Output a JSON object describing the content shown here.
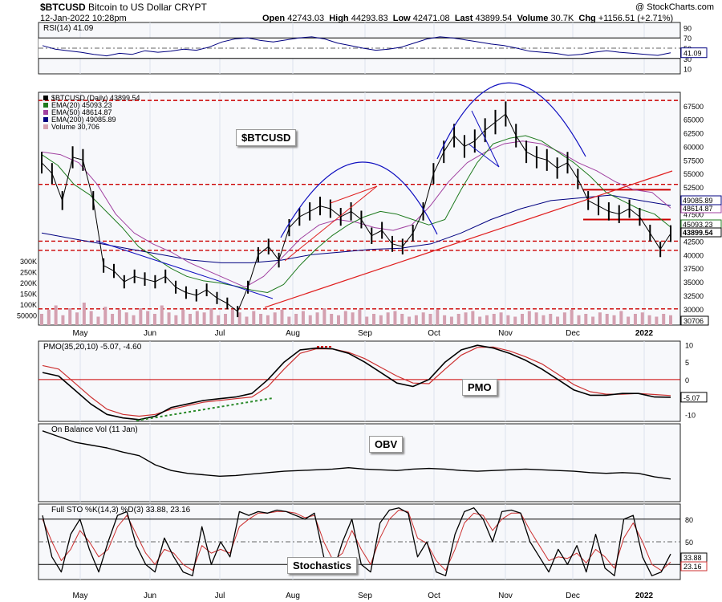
{
  "header": {
    "symbol": "$BTCUSD",
    "description": "Bitcoin to US Dollar",
    "exchange": "CRYPT",
    "date": "12-Jan-2022 10:28pm",
    "open_label": "Open",
    "open": "42743.03",
    "high_label": "High",
    "high": "44293.83",
    "low_label": "Low",
    "low": "42471.08",
    "last_label": "Last",
    "last": "43899.54",
    "volume_label": "Volume",
    "volume": "30.7K",
    "chg_label": "Chg",
    "chg": "+1156.51 (+2.71%)",
    "watermark": "@ StockCharts.com"
  },
  "annotations": {
    "symbol_box": "$BTCUSD",
    "pmo_box": "PMO",
    "obv_box": "OBV",
    "sto_box": "Stochastics"
  },
  "colors": {
    "price": "#000000",
    "ema20": "#1e7a1e",
    "ema50": "#a040a0",
    "ema200": "#000080",
    "support": "#cc0000",
    "volume": "#d4a0b0",
    "trend_red": "#e02020",
    "trend_blue": "#1010c0",
    "pmo_signal": "#cc3030",
    "sto_d": "#cc3030",
    "green_dash": "#2a8a2a"
  },
  "chart_data": [
    {
      "type": "line",
      "panel": "RSI",
      "title": "RSI(14) 41.09",
      "series": [
        {
          "name": "RSI(14)",
          "values": [
            55,
            48,
            45,
            42,
            38,
            35,
            40,
            38,
            45,
            42,
            44,
            48,
            46,
            52,
            62,
            68,
            70,
            65,
            62,
            66,
            70,
            72,
            68,
            60,
            55,
            50,
            46,
            48,
            52,
            60,
            68,
            72,
            70,
            66,
            62,
            58,
            55,
            50,
            44,
            42,
            40,
            36,
            38,
            42,
            45,
            42,
            40,
            38,
            36,
            41.09
          ]
        }
      ],
      "ticks": [
        90,
        70,
        50,
        30,
        10
      ],
      "last_label": "41.09",
      "ylim": [
        0,
        100
      ]
    },
    {
      "type": "line",
      "panel": "Price",
      "legend": [
        "$BTCUSD (Daily) 43899.54",
        "EMA(20) 45093.23",
        "EMA(50) 48614.87",
        "EMA(200) 49085.89",
        "Volume 30,706"
      ],
      "months": [
        "May",
        "Jun",
        "Jul",
        "Aug",
        "Sep",
        "Oct",
        "Nov",
        "Dec",
        "2022"
      ],
      "series": [
        {
          "name": "$BTCUSD (Daily)",
          "values": [
            57000,
            55000,
            50000,
            58000,
            57500,
            50000,
            38000,
            37000,
            35000,
            36000,
            35500,
            35000,
            36000,
            34000,
            33000,
            32500,
            33500,
            32000,
            31000,
            29500,
            34000,
            40000,
            41500,
            39000,
            45000,
            47000,
            48000,
            49000,
            48500,
            47000,
            48000,
            46500,
            43500,
            44500,
            42000,
            41500,
            44000,
            48000,
            55000,
            59000,
            62000,
            60000,
            61000,
            63000,
            64500,
            66000,
            62000,
            59000,
            58000,
            57500,
            56000,
            57000,
            54000,
            50000,
            49000,
            48000,
            47500,
            48500,
            47000,
            44000,
            41000,
            43899.54
          ]
        },
        {
          "name": "EMA(20)",
          "values": [
            58500,
            56500,
            53000,
            51000,
            48000,
            45000,
            41500,
            39500,
            37500,
            36000,
            35200,
            34800,
            34200,
            33500,
            33000,
            34500,
            38000,
            41000,
            43500,
            45500,
            47000,
            48000,
            47500,
            46500,
            45500,
            46500,
            52000,
            57000,
            60500,
            61500,
            62000,
            61000,
            59000,
            57000,
            54500,
            51500,
            50000,
            48500,
            47500,
            45093.23
          ]
        },
        {
          "name": "EMA(50)",
          "values": [
            59000,
            58500,
            57000,
            53000,
            47500,
            44000,
            42000,
            40500,
            38500,
            37000,
            35500,
            34000,
            36000,
            39500,
            43000,
            45500,
            46500,
            46000,
            45000,
            44500,
            45500,
            49000,
            53500,
            57000,
            59000,
            60500,
            61000,
            60500,
            59000,
            57000,
            55500,
            53500,
            52000,
            51500,
            48614.87
          ]
        },
        {
          "name": "EMA(200)",
          "values": [
            44000,
            43000,
            42000,
            41000,
            40000,
            39000,
            38500,
            38500,
            39000,
            40000,
            40500,
            41000,
            41200,
            42000,
            44000,
            46500,
            48500,
            50000,
            50500,
            51000,
            50000,
            49085.89
          ]
        }
      ],
      "horizontal_levels": [
        68500,
        53000,
        42500,
        40800,
        30000
      ],
      "resistance_segments": [
        52000,
        46500
      ],
      "ticks": [
        67500,
        65000,
        62500,
        60000,
        57500,
        55000,
        52500,
        50000,
        47500,
        45000,
        42500,
        40000,
        37500,
        35000,
        32500,
        30000
      ],
      "right_labels": [
        "48614.87",
        "49085.89",
        "45093.23",
        "43899.54"
      ],
      "volume_ticks": [
        "300K",
        "250K",
        "200K",
        "150K",
        "100K",
        "50000"
      ],
      "volume_last": "30706",
      "ylim": [
        27000,
        70000
      ]
    },
    {
      "type": "line",
      "panel": "PMO",
      "title": "PMO(35,20,10) -5.07, -4.60",
      "series": [
        {
          "name": "PMO",
          "values": [
            2,
            1,
            -3,
            -7,
            -10,
            -11,
            -11.5,
            -10.5,
            -8,
            -7,
            -6,
            -5.5,
            -5,
            -4,
            0,
            5,
            8.5,
            9,
            8.8,
            7.5,
            5,
            2,
            -1,
            -2,
            0,
            5,
            8.5,
            9.8,
            9,
            7.5,
            5.5,
            3,
            0,
            -3,
            -4.5,
            -4.5,
            -4,
            -4,
            -5,
            -5.07
          ]
        },
        {
          "name": "Signal",
          "values": [
            4,
            3,
            -1,
            -5,
            -8.5,
            -10,
            -10.5,
            -10,
            -8.5,
            -7.5,
            -6.5,
            -6,
            -5.5,
            -5,
            -2,
            3,
            7.5,
            8.8,
            8.8,
            7.8,
            6,
            3.5,
            1,
            -1,
            -1.2,
            3,
            7,
            9.2,
            9.3,
            8.2,
            6.5,
            4.5,
            1.5,
            -1.5,
            -3.5,
            -4.2,
            -4.2,
            -4,
            -4.3,
            -4.6
          ]
        }
      ],
      "ticks": [
        10,
        5,
        0,
        -5,
        -10
      ],
      "ylim": [
        -12,
        11
      ]
    },
    {
      "type": "line",
      "panel": "OBV",
      "title": "On Balance Vol (11 Jan)",
      "series": [
        {
          "name": "OBV",
          "values": [
            100,
            92,
            84,
            80,
            76,
            70,
            65,
            52,
            44,
            40,
            38,
            36,
            37,
            39,
            41,
            43,
            44,
            45,
            46,
            48,
            46,
            45,
            44,
            46,
            47,
            46,
            44,
            43,
            44,
            45,
            46,
            45,
            44,
            43,
            41,
            40,
            41,
            40,
            35,
            32
          ]
        }
      ],
      "ylim": [
        0,
        110
      ]
    },
    {
      "type": "line",
      "panel": "Stochastics",
      "title": "Full STO %K(14,3) %D(3) 33.88, 23.16",
      "series": [
        {
          "name": "%K",
          "values": [
            85,
            30,
            10,
            60,
            80,
            40,
            10,
            50,
            85,
            90,
            45,
            20,
            10,
            55,
            30,
            10,
            5,
            70,
            20,
            50,
            30,
            90,
            85,
            90,
            88,
            92,
            90,
            85,
            80,
            88,
            30,
            10,
            50,
            80,
            20,
            10,
            75,
            92,
            95,
            88,
            30,
            50,
            10,
            5,
            60,
            90,
            95,
            80,
            50,
            90,
            92,
            88,
            50,
            30,
            10,
            40,
            20,
            45,
            10,
            60,
            15,
            5,
            80,
            85,
            30,
            5,
            10,
            33.88
          ]
        },
        {
          "name": "%D",
          "values": [
            80,
            50,
            25,
            40,
            65,
            50,
            30,
            40,
            70,
            85,
            60,
            35,
            20,
            40,
            35,
            20,
            12,
            45,
            35,
            40,
            35,
            70,
            80,
            88,
            88,
            90,
            90,
            88,
            82,
            85,
            50,
            25,
            35,
            65,
            40,
            20,
            55,
            80,
            92,
            90,
            55,
            48,
            25,
            12,
            40,
            75,
            88,
            85,
            65,
            80,
            88,
            88,
            65,
            45,
            25,
            30,
            28,
            35,
            22,
            40,
            30,
            15,
            55,
            75,
            50,
            20,
            12,
            23.16
          ]
        }
      ],
      "ticks": [
        80,
        50,
        20
      ],
      "ylim": [
        0,
        100
      ]
    }
  ],
  "x_axis": {
    "months": [
      "May",
      "Jun",
      "Jul",
      "Aug",
      "Sep",
      "Oct",
      "Nov",
      "Dec",
      "2022"
    ]
  },
  "pmo_ticks": [
    "10",
    "5",
    "0",
    "-5",
    "-10"
  ],
  "pmo_last": "-5.07",
  "sto_last_k": "33.88",
  "sto_last_d": "23.16"
}
